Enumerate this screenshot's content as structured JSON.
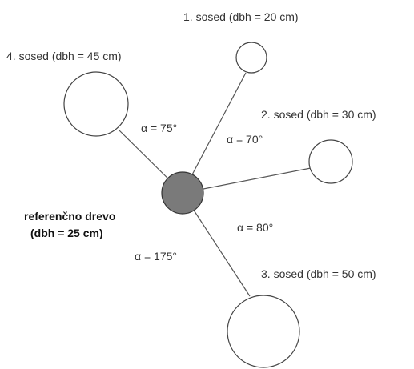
{
  "diagram": {
    "reference": {
      "line1": "referenčno drevo",
      "line2": "(dbh = 25 cm)",
      "fill": "#7a7a7a"
    },
    "neighbors": [
      {
        "label": "1. sosed (dbh = 20 cm)"
      },
      {
        "label": "2. sosed (dbh = 30 cm)"
      },
      {
        "label": "3. sosed (dbh = 50 cm)"
      },
      {
        "label": "4. sosed (dbh = 45 cm)"
      }
    ],
    "angles": [
      {
        "label": "α = 75°"
      },
      {
        "label": "α = 70°"
      },
      {
        "label": "α = 80°"
      },
      {
        "label": "α = 175°"
      }
    ],
    "colors": {
      "line": "#555555",
      "neighbor_fill": "#ffffff",
      "neighbor_stroke": "#444444"
    }
  }
}
